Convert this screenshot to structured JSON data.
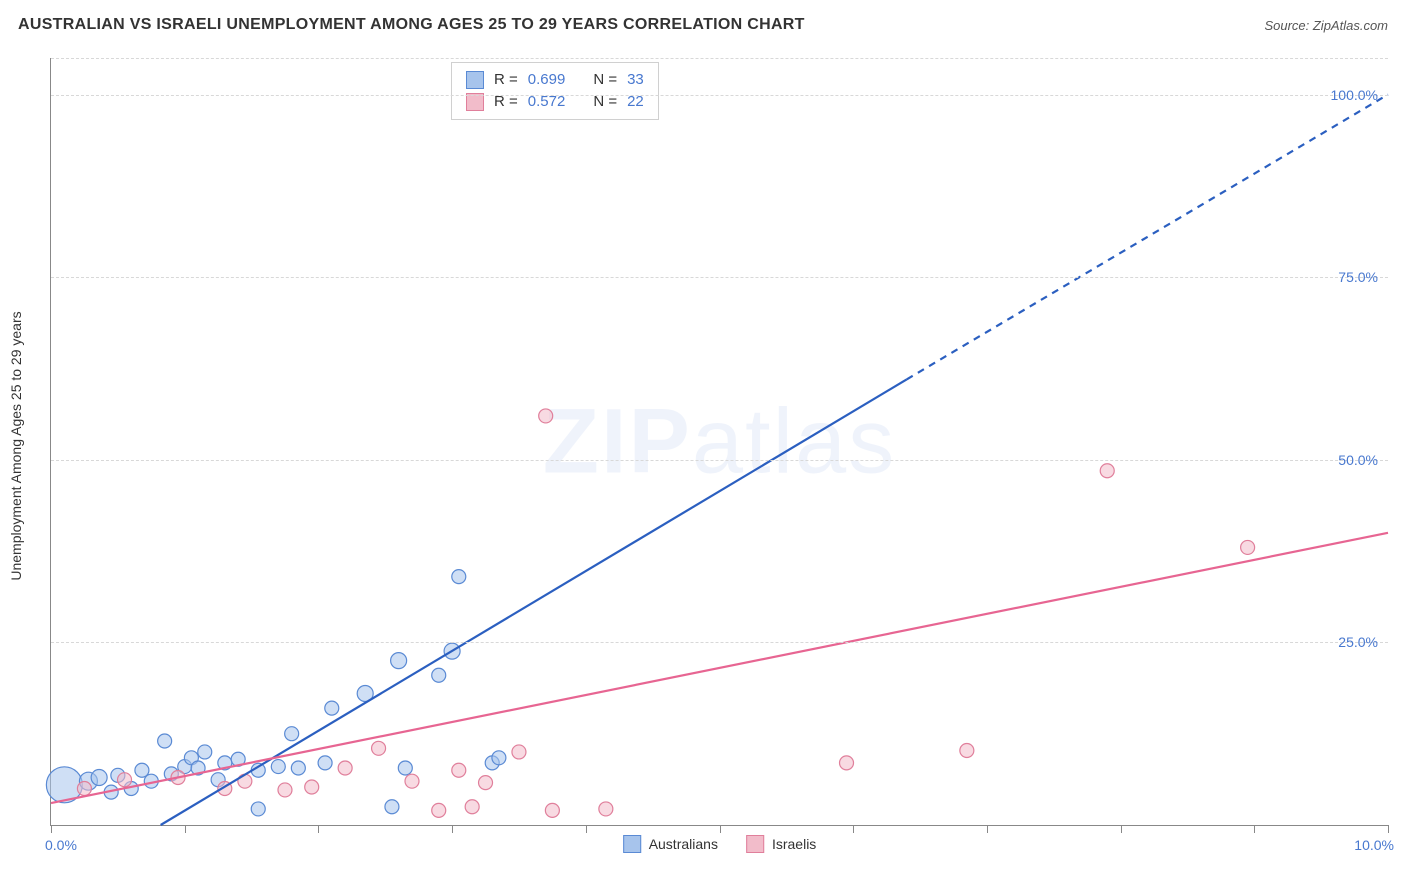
{
  "title": "AUSTRALIAN VS ISRAELI UNEMPLOYMENT AMONG AGES 25 TO 29 YEARS CORRELATION CHART",
  "source_label": "Source: ZipAtlas.com",
  "y_axis_title": "Unemployment Among Ages 25 to 29 years",
  "watermark": "ZIPatlas",
  "chart": {
    "type": "scatter",
    "xlim": [
      0,
      10
    ],
    "ylim": [
      0,
      105
    ],
    "x_tick_positions": [
      0,
      1,
      2,
      3,
      4,
      5,
      6,
      7,
      8,
      9,
      10
    ],
    "x_axis_labels": {
      "left": "0.0%",
      "right": "10.0%"
    },
    "y_grid": [
      {
        "value": 25,
        "label": "25.0%"
      },
      {
        "value": 50,
        "label": "50.0%"
      },
      {
        "value": 75,
        "label": "75.0%"
      },
      {
        "value": 100,
        "label": "100.0%"
      }
    ],
    "background_color": "#ffffff",
    "grid_color": "#d8d8d8",
    "axis_color": "#888888",
    "label_color": "#4878cf",
    "label_fontsize": 14,
    "title_fontsize": 16,
    "title_color": "#333333",
    "series": [
      {
        "name": "Australians",
        "point_fill": "#a7c4ec",
        "point_stroke": "#5a8ad4",
        "fill_opacity": 0.55,
        "line_color": "#2b5fc0",
        "line_width": 2.2,
        "trend_solid": {
          "x1": 0.82,
          "y1": 0,
          "x2": 6.4,
          "y2": 61
        },
        "trend_dashed": {
          "x1": 6.4,
          "y1": 61,
          "x2": 10,
          "y2": 100
        },
        "dash_pattern": "7,6",
        "points": [
          {
            "x": 0.1,
            "y": 5.5,
            "r": 18
          },
          {
            "x": 0.28,
            "y": 6.0,
            "r": 9
          },
          {
            "x": 0.36,
            "y": 6.5,
            "r": 8
          },
          {
            "x": 0.45,
            "y": 4.5,
            "r": 7
          },
          {
            "x": 0.5,
            "y": 6.8,
            "r": 7
          },
          {
            "x": 0.6,
            "y": 5.0,
            "r": 7
          },
          {
            "x": 0.68,
            "y": 7.5,
            "r": 7
          },
          {
            "x": 0.75,
            "y": 6.0,
            "r": 7
          },
          {
            "x": 0.85,
            "y": 11.5,
            "r": 7
          },
          {
            "x": 0.9,
            "y": 7.0,
            "r": 7
          },
          {
            "x": 1.0,
            "y": 8.0,
            "r": 7
          },
          {
            "x": 1.05,
            "y": 9.2,
            "r": 7
          },
          {
            "x": 1.1,
            "y": 7.8,
            "r": 7
          },
          {
            "x": 1.15,
            "y": 10.0,
            "r": 7
          },
          {
            "x": 1.25,
            "y": 6.2,
            "r": 7
          },
          {
            "x": 1.3,
            "y": 8.5,
            "r": 7
          },
          {
            "x": 1.4,
            "y": 9.0,
            "r": 7
          },
          {
            "x": 1.55,
            "y": 2.2,
            "r": 7
          },
          {
            "x": 1.55,
            "y": 7.5,
            "r": 7
          },
          {
            "x": 1.7,
            "y": 8.0,
            "r": 7
          },
          {
            "x": 1.8,
            "y": 12.5,
            "r": 7
          },
          {
            "x": 1.85,
            "y": 7.8,
            "r": 7
          },
          {
            "x": 2.05,
            "y": 8.5,
            "r": 7
          },
          {
            "x": 2.1,
            "y": 16.0,
            "r": 7
          },
          {
            "x": 2.35,
            "y": 18.0,
            "r": 8
          },
          {
            "x": 2.55,
            "y": 2.5,
            "r": 7
          },
          {
            "x": 2.6,
            "y": 22.5,
            "r": 8
          },
          {
            "x": 2.65,
            "y": 7.8,
            "r": 7
          },
          {
            "x": 2.9,
            "y": 20.5,
            "r": 7
          },
          {
            "x": 3.0,
            "y": 23.8,
            "r": 8
          },
          {
            "x": 3.05,
            "y": 34.0,
            "r": 7
          },
          {
            "x": 3.3,
            "y": 8.5,
            "r": 7
          },
          {
            "x": 3.35,
            "y": 9.2,
            "r": 7
          }
        ]
      },
      {
        "name": "Israelis",
        "point_fill": "#f2bcca",
        "point_stroke": "#e07f9b",
        "fill_opacity": 0.55,
        "line_color": "#e76592",
        "line_width": 2.2,
        "trend_solid": {
          "x1": 0,
          "y1": 3.0,
          "x2": 10,
          "y2": 40.0
        },
        "trend_dashed": null,
        "points": [
          {
            "x": 0.25,
            "y": 5.0,
            "r": 7
          },
          {
            "x": 0.55,
            "y": 6.2,
            "r": 7
          },
          {
            "x": 0.95,
            "y": 6.5,
            "r": 7
          },
          {
            "x": 1.3,
            "y": 5.0,
            "r": 7
          },
          {
            "x": 1.45,
            "y": 6.0,
            "r": 7
          },
          {
            "x": 1.75,
            "y": 4.8,
            "r": 7
          },
          {
            "x": 1.95,
            "y": 5.2,
            "r": 7
          },
          {
            "x": 2.2,
            "y": 7.8,
            "r": 7
          },
          {
            "x": 2.45,
            "y": 10.5,
            "r": 7
          },
          {
            "x": 2.7,
            "y": 6.0,
            "r": 7
          },
          {
            "x": 2.9,
            "y": 2.0,
            "r": 7
          },
          {
            "x": 3.05,
            "y": 7.5,
            "r": 7
          },
          {
            "x": 3.15,
            "y": 2.5,
            "r": 7
          },
          {
            "x": 3.25,
            "y": 5.8,
            "r": 7
          },
          {
            "x": 3.5,
            "y": 10.0,
            "r": 7
          },
          {
            "x": 3.7,
            "y": 56.0,
            "r": 7
          },
          {
            "x": 3.75,
            "y": 2.0,
            "r": 7
          },
          {
            "x": 4.15,
            "y": 2.2,
            "r": 7
          },
          {
            "x": 5.95,
            "y": 8.5,
            "r": 7
          },
          {
            "x": 6.85,
            "y": 10.2,
            "r": 7
          },
          {
            "x": 7.9,
            "y": 48.5,
            "r": 7
          },
          {
            "x": 8.95,
            "y": 38.0,
            "r": 7
          }
        ]
      }
    ],
    "stats": [
      {
        "series": "Australians",
        "r_label": "R =",
        "r_value": "0.699",
        "n_label": "N =",
        "n_value": "33",
        "swatch_fill": "#a7c4ec",
        "swatch_stroke": "#5a8ad4"
      },
      {
        "series": "Israelis",
        "r_label": "R =",
        "r_value": "0.572",
        "n_label": "N =",
        "n_value": "22",
        "swatch_fill": "#f2bcca",
        "swatch_stroke": "#e07f9b"
      }
    ],
    "legend": [
      {
        "label": "Australians",
        "swatch_fill": "#a7c4ec",
        "swatch_stroke": "#5a8ad4"
      },
      {
        "label": "Israelis",
        "swatch_fill": "#f2bcca",
        "swatch_stroke": "#e07f9b"
      }
    ]
  }
}
